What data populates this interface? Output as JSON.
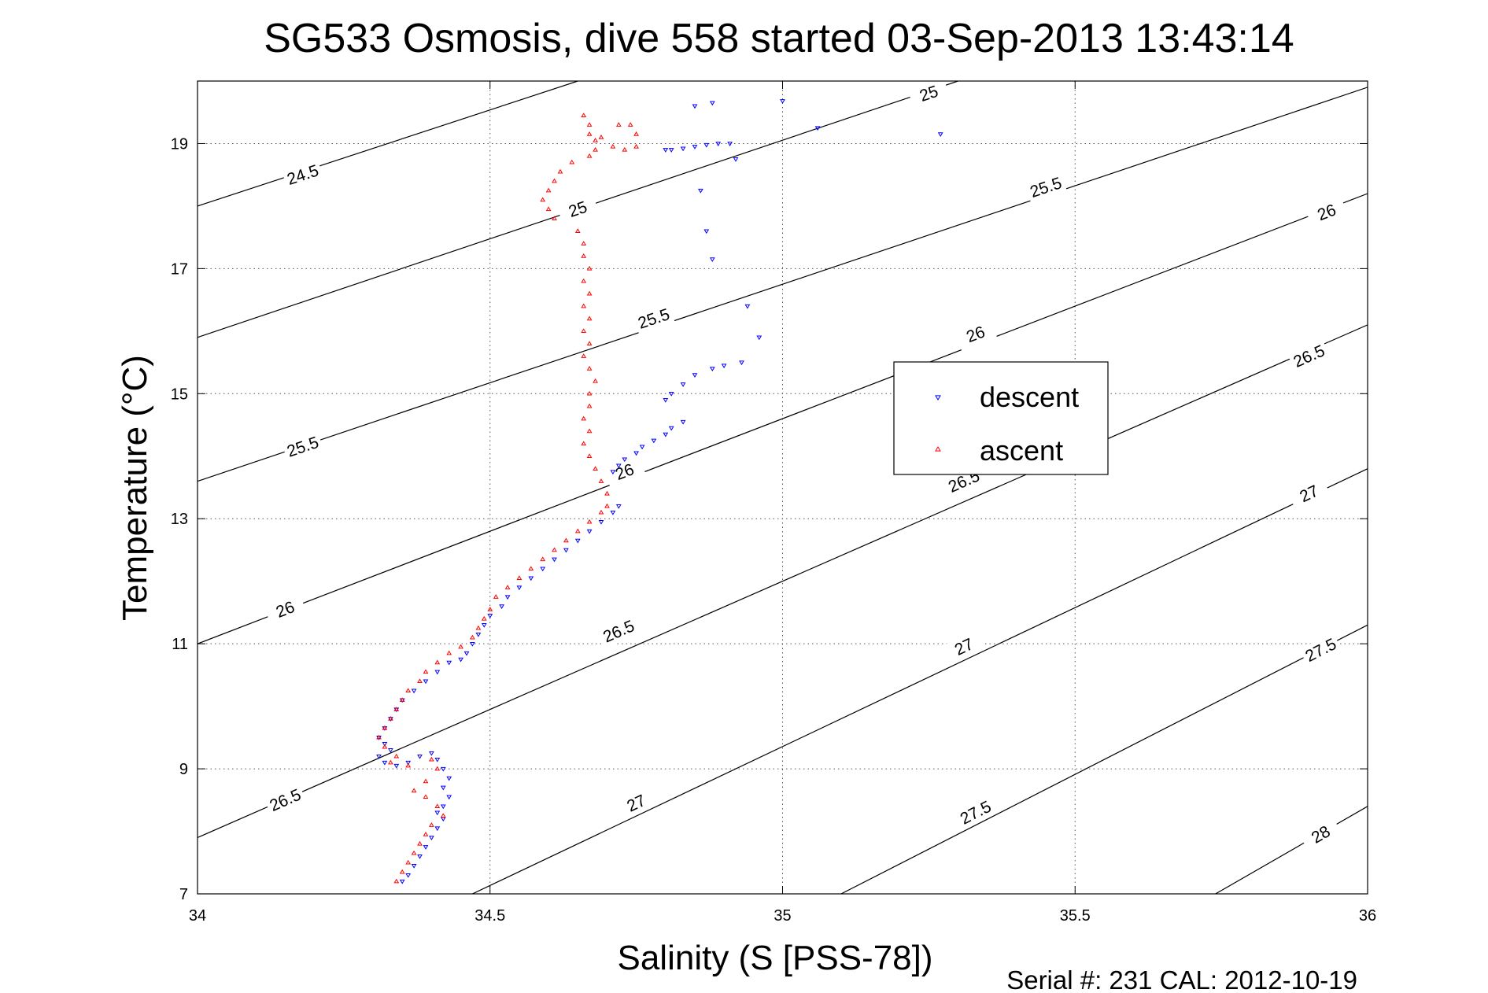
{
  "chart_data": {
    "type": "scatter",
    "title": "SG533 Osmosis, dive 558 started 03-Sep-2013 13:43:14",
    "xlabel": "Salinity (S [PSS-78])",
    "ylabel": "Temperature (°C)",
    "footer": "Serial #: 231  CAL: 2012-10-19",
    "xlim": [
      34,
      36
    ],
    "ylim": [
      7,
      20
    ],
    "xticks": [
      "34",
      "34.5",
      "35",
      "35.5",
      "36"
    ],
    "yticks": [
      "7",
      "9",
      "11",
      "13",
      "15",
      "17",
      "19"
    ],
    "grid": true,
    "legend_position": "center-right",
    "contours": {
      "color": "#000000",
      "levels": [
        {
          "value": 24.5,
          "label": "24.5",
          "points": [
            [
              34.0,
              18.0
            ],
            [
              34.65,
              20.0
            ]
          ],
          "label_positions": [
            [
              34.18,
              18.5
            ]
          ]
        },
        {
          "value": 25,
          "label": "25",
          "points": [
            [
              34.0,
              15.9
            ],
            [
              35.3,
              20.0
            ]
          ],
          "label_positions": [
            [
              34.65,
              17.95
            ],
            [
              35.25,
              19.8
            ]
          ]
        },
        {
          "value": 25.5,
          "label": "25.5",
          "points": [
            [
              34.0,
              13.6
            ],
            [
              36.0,
              19.9
            ]
          ],
          "label_positions": [
            [
              34.18,
              14.15
            ],
            [
              34.78,
              16.2
            ],
            [
              35.45,
              18.3
            ]
          ]
        },
        {
          "value": 26,
          "label": "26",
          "points": [
            [
              34.0,
              11.0
            ],
            [
              36.0,
              18.2
            ]
          ],
          "label_positions": [
            [
              34.15,
              11.55
            ],
            [
              34.73,
              13.75
            ],
            [
              35.33,
              15.95
            ],
            [
              35.93,
              17.9
            ]
          ]
        },
        {
          "value": 26.5,
          "label": "26.5",
          "points": [
            [
              34.0,
              7.9
            ],
            [
              36.0,
              16.1
            ]
          ],
          "label_positions": [
            [
              34.15,
              8.5
            ],
            [
              34.72,
              11.2
            ],
            [
              35.31,
              13.6
            ],
            [
              35.9,
              15.6
            ]
          ]
        },
        {
          "value": 27,
          "label": "27",
          "points": [
            [
              34.47,
              7.0
            ],
            [
              36.0,
              13.8
            ]
          ],
          "label_positions": [
            [
              34.75,
              8.45
            ],
            [
              35.31,
              10.95
            ],
            [
              35.9,
              13.4
            ]
          ]
        },
        {
          "value": 27.5,
          "label": "27.5",
          "points": [
            [
              35.1,
              7.0
            ],
            [
              36.0,
              11.3
            ]
          ],
          "label_positions": [
            [
              35.33,
              8.3
            ],
            [
              35.92,
              10.9
            ]
          ]
        },
        {
          "value": 28,
          "label": "28",
          "points": [
            [
              35.74,
              7.0
            ],
            [
              36.0,
              8.4
            ]
          ],
          "label_positions": [
            [
              35.92,
              7.95
            ]
          ]
        }
      ]
    },
    "series": [
      {
        "name": "descent",
        "color": "#0000ff",
        "marker": "triangle-down",
        "points": [
          [
            34.8,
            18.9
          ],
          [
            34.81,
            18.9
          ],
          [
            34.83,
            18.92
          ],
          [
            34.85,
            18.95
          ],
          [
            34.87,
            18.98
          ],
          [
            34.89,
            19.0
          ],
          [
            34.91,
            19.0
          ],
          [
            34.85,
            19.6
          ],
          [
            34.88,
            19.65
          ],
          [
            35.0,
            19.68
          ],
          [
            35.06,
            19.25
          ],
          [
            35.27,
            19.15
          ],
          [
            34.92,
            18.75
          ],
          [
            34.86,
            18.25
          ],
          [
            34.87,
            17.6
          ],
          [
            34.88,
            17.15
          ],
          [
            34.94,
            16.4
          ],
          [
            34.96,
            15.9
          ],
          [
            34.93,
            15.5
          ],
          [
            34.9,
            15.45
          ],
          [
            34.88,
            15.4
          ],
          [
            34.85,
            15.3
          ],
          [
            34.83,
            15.15
          ],
          [
            34.81,
            15.0
          ],
          [
            34.8,
            14.9
          ],
          [
            34.83,
            14.55
          ],
          [
            34.81,
            14.45
          ],
          [
            34.8,
            14.35
          ],
          [
            34.78,
            14.25
          ],
          [
            34.76,
            14.15
          ],
          [
            34.75,
            14.05
          ],
          [
            34.73,
            13.95
          ],
          [
            34.72,
            13.85
          ],
          [
            34.71,
            13.75
          ],
          [
            34.72,
            13.2
          ],
          [
            34.71,
            13.1
          ],
          [
            34.69,
            12.95
          ],
          [
            34.67,
            12.8
          ],
          [
            34.65,
            12.65
          ],
          [
            34.63,
            12.5
          ],
          [
            34.61,
            12.35
          ],
          [
            34.59,
            12.2
          ],
          [
            34.57,
            12.05
          ],
          [
            34.55,
            11.9
          ],
          [
            34.53,
            11.75
          ],
          [
            34.52,
            11.6
          ],
          [
            34.5,
            11.45
          ],
          [
            34.49,
            11.3
          ],
          [
            34.48,
            11.15
          ],
          [
            34.47,
            11.0
          ],
          [
            34.46,
            10.85
          ],
          [
            34.45,
            10.75
          ],
          [
            34.43,
            10.7
          ],
          [
            34.41,
            10.55
          ],
          [
            34.39,
            10.4
          ],
          [
            34.37,
            10.25
          ],
          [
            34.35,
            10.1
          ],
          [
            34.34,
            9.95
          ],
          [
            34.33,
            9.8
          ],
          [
            34.32,
            9.65
          ],
          [
            34.31,
            9.5
          ],
          [
            34.32,
            9.4
          ],
          [
            34.33,
            9.3
          ],
          [
            34.31,
            9.2
          ],
          [
            34.32,
            9.1
          ],
          [
            34.34,
            9.05
          ],
          [
            34.36,
            9.1
          ],
          [
            34.38,
            9.2
          ],
          [
            34.4,
            9.25
          ],
          [
            34.41,
            9.15
          ],
          [
            34.42,
            9.0
          ],
          [
            34.43,
            8.85
          ],
          [
            34.42,
            8.7
          ],
          [
            34.43,
            8.55
          ],
          [
            34.42,
            8.4
          ],
          [
            34.41,
            8.3
          ],
          [
            34.42,
            8.2
          ],
          [
            34.41,
            8.05
          ],
          [
            34.4,
            7.9
          ],
          [
            34.39,
            7.75
          ],
          [
            34.38,
            7.6
          ],
          [
            34.37,
            7.45
          ],
          [
            34.36,
            7.3
          ],
          [
            34.35,
            7.2
          ]
        ]
      },
      {
        "name": "ascent",
        "color": "#ff0000",
        "marker": "triangle-up",
        "points": [
          [
            34.66,
            19.45
          ],
          [
            34.67,
            19.3
          ],
          [
            34.67,
            19.15
          ],
          [
            34.68,
            19.05
          ],
          [
            34.71,
            18.95
          ],
          [
            34.73,
            18.9
          ],
          [
            34.75,
            18.95
          ],
          [
            34.75,
            19.15
          ],
          [
            34.74,
            19.3
          ],
          [
            34.72,
            19.3
          ],
          [
            34.69,
            19.1
          ],
          [
            34.68,
            18.9
          ],
          [
            34.67,
            18.8
          ],
          [
            34.64,
            18.7
          ],
          [
            34.62,
            18.55
          ],
          [
            34.61,
            18.4
          ],
          [
            34.6,
            18.25
          ],
          [
            34.59,
            18.1
          ],
          [
            34.6,
            17.95
          ],
          [
            34.61,
            17.8
          ],
          [
            34.65,
            17.6
          ],
          [
            34.66,
            17.4
          ],
          [
            34.66,
            17.2
          ],
          [
            34.67,
            17.0
          ],
          [
            34.66,
            16.8
          ],
          [
            34.67,
            16.6
          ],
          [
            34.66,
            16.4
          ],
          [
            34.67,
            16.2
          ],
          [
            34.66,
            16.0
          ],
          [
            34.67,
            15.8
          ],
          [
            34.66,
            15.6
          ],
          [
            34.67,
            15.4
          ],
          [
            34.68,
            15.2
          ],
          [
            34.67,
            15.0
          ],
          [
            34.67,
            14.8
          ],
          [
            34.66,
            14.6
          ],
          [
            34.67,
            14.4
          ],
          [
            34.66,
            14.2
          ],
          [
            34.67,
            14.0
          ],
          [
            34.68,
            13.8
          ],
          [
            34.69,
            13.6
          ],
          [
            34.7,
            13.4
          ],
          [
            34.7,
            13.2
          ],
          [
            34.69,
            13.1
          ],
          [
            34.67,
            12.95
          ],
          [
            34.65,
            12.8
          ],
          [
            34.63,
            12.65
          ],
          [
            34.61,
            12.5
          ],
          [
            34.59,
            12.35
          ],
          [
            34.57,
            12.2
          ],
          [
            34.55,
            12.05
          ],
          [
            34.53,
            11.9
          ],
          [
            34.51,
            11.75
          ],
          [
            34.5,
            11.55
          ],
          [
            34.49,
            11.4
          ],
          [
            34.48,
            11.25
          ],
          [
            34.47,
            11.1
          ],
          [
            34.45,
            10.95
          ],
          [
            34.43,
            10.85
          ],
          [
            34.41,
            10.7
          ],
          [
            34.39,
            10.55
          ],
          [
            34.38,
            10.4
          ],
          [
            34.36,
            10.25
          ],
          [
            34.35,
            10.1
          ],
          [
            34.34,
            9.95
          ],
          [
            34.33,
            9.8
          ],
          [
            34.32,
            9.65
          ],
          [
            34.31,
            9.5
          ],
          [
            34.32,
            9.35
          ],
          [
            34.34,
            9.2
          ],
          [
            34.33,
            9.1
          ],
          [
            34.36,
            9.05
          ],
          [
            34.4,
            9.15
          ],
          [
            34.41,
            9.0
          ],
          [
            34.39,
            8.8
          ],
          [
            34.37,
            8.65
          ],
          [
            34.39,
            8.55
          ],
          [
            34.41,
            8.4
          ],
          [
            34.42,
            8.25
          ],
          [
            34.4,
            8.1
          ],
          [
            34.39,
            7.95
          ],
          [
            34.38,
            7.8
          ],
          [
            34.37,
            7.65
          ],
          [
            34.36,
            7.5
          ],
          [
            34.35,
            7.35
          ],
          [
            34.34,
            7.2
          ]
        ]
      }
    ]
  }
}
